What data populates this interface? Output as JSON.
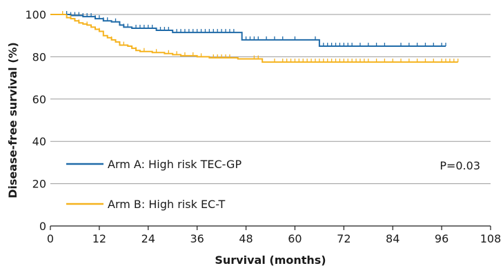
{
  "chart_data": {
    "type": "line",
    "step": true,
    "xlabel": "Survival (months)",
    "ylabel": "Disease-free survival (%)",
    "xlim": [
      0,
      108
    ],
    "ylim": [
      0,
      100
    ],
    "xticks": [
      0,
      12,
      24,
      36,
      48,
      60,
      72,
      84,
      96,
      108
    ],
    "yticks": [
      0,
      20,
      40,
      60,
      80,
      100
    ],
    "grid": {
      "horizontal": true,
      "vertical": false
    },
    "legend_position": "bottom-left",
    "annotation": "P=0.03",
    "series": [
      {
        "name": "Arm A: High risk TEC-GP",
        "color": "#1f6aa8",
        "x": [
          0,
          5,
          8,
          11,
          13,
          15,
          17,
          18,
          20,
          26,
          30,
          46,
          47,
          52,
          66,
          97
        ],
        "y": [
          100,
          99.5,
          99,
          98,
          97,
          96.5,
          95,
          94,
          93.5,
          92.5,
          91.5,
          91.5,
          88,
          88,
          85,
          85
        ],
        "censor_x": [
          4,
          5,
          6,
          7,
          8,
          9,
          10,
          11,
          12,
          13,
          14,
          16,
          18,
          19,
          21,
          22,
          23,
          24,
          25,
          27,
          28,
          29,
          31,
          32,
          33,
          34,
          35,
          36,
          37,
          38,
          39,
          40,
          41,
          42,
          43,
          44,
          45,
          48,
          49,
          50,
          51,
          53,
          55,
          57,
          60,
          65,
          67,
          68,
          69,
          70,
          71,
          72,
          73,
          74,
          76,
          78,
          80,
          82,
          86,
          88,
          90,
          92,
          94,
          96,
          97
        ]
      },
      {
        "name": "Arm B: High risk EC-T",
        "color": "#f5b21d",
        "x": [
          0,
          4,
          5,
          6,
          7,
          8,
          9,
          10,
          11,
          12,
          13,
          14,
          15,
          16,
          17,
          19,
          20,
          21,
          22,
          25,
          28,
          30,
          32,
          34,
          36,
          39,
          45,
          46,
          47,
          52,
          53,
          60,
          100
        ],
        "y": [
          100,
          98.5,
          98,
          97,
          96,
          95.5,
          95,
          94,
          93,
          92,
          90,
          89,
          88,
          87,
          85.5,
          85,
          84,
          83,
          82.5,
          82,
          81.5,
          81,
          80.5,
          80.5,
          80,
          79.5,
          79.5,
          79,
          79,
          77.5,
          77.5,
          77.5,
          77.5
        ],
        "censor_x": [
          3,
          5,
          7,
          9,
          12,
          15,
          18,
          21,
          23,
          26,
          29,
          31,
          33,
          35,
          37,
          40,
          41,
          42,
          43,
          44,
          50,
          51,
          55,
          57,
          58,
          59,
          60,
          61,
          62,
          63,
          64,
          65,
          66,
          67,
          68,
          69,
          70,
          71,
          72,
          73,
          74,
          75,
          76,
          77,
          78,
          80,
          82,
          84,
          86,
          88,
          90,
          92,
          94,
          96,
          97,
          98,
          99,
          100
        ]
      }
    ]
  }
}
